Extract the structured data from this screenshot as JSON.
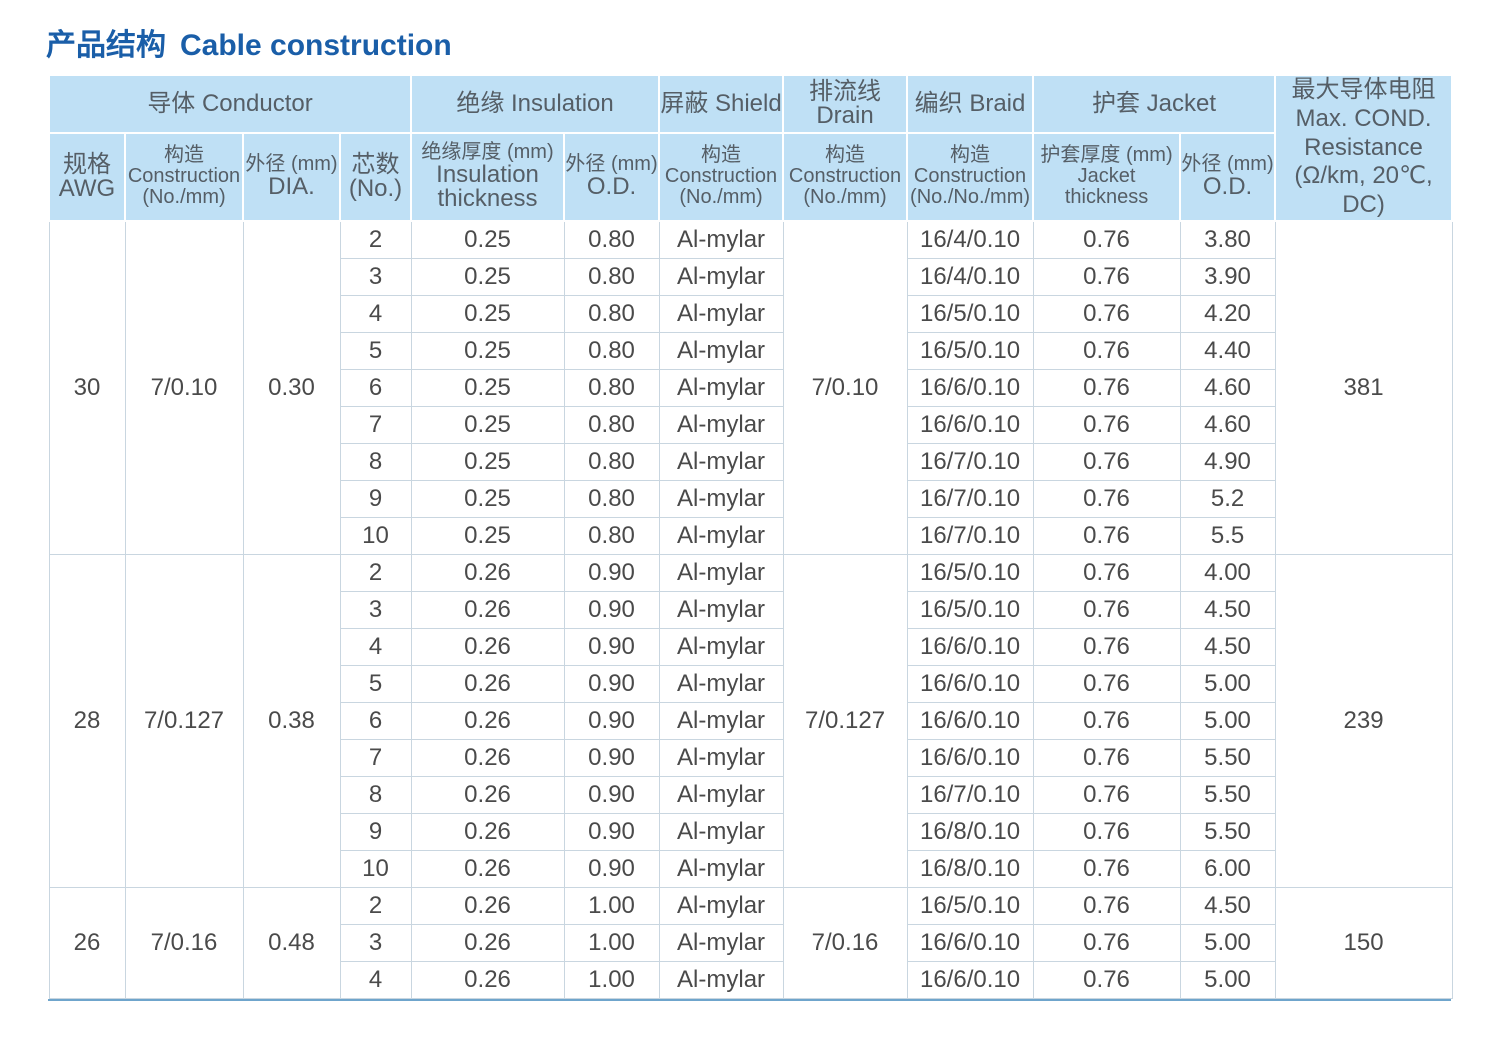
{
  "title": {
    "zh": "产品结构",
    "en": "Cable construction"
  },
  "header": {
    "groups": {
      "conductor": "导体 Conductor",
      "insulation": "绝缘 Insulation",
      "shield": "屏蔽 Shield",
      "drain": "排流线 Drain",
      "braid": "编织 Braid",
      "jacket": "护套 Jacket",
      "resistance_zh": "最大导体电阻",
      "resistance_en1": "Max. COND.",
      "resistance_en2": "Resistance",
      "resistance_unit": "(Ω/km, 20℃, DC)"
    },
    "cols": {
      "awg_zh": "规格",
      "awg_en": "AWG",
      "cond_construction_zh": "构造",
      "cond_construction_en1": "Construction",
      "cond_construction_en2": "(No./mm)",
      "dia_zh": "外径 (mm)",
      "dia_en": "DIA.",
      "cores_zh": "芯数",
      "cores_en": "(No.)",
      "ins_thick_zh": "绝缘厚度 (mm)",
      "ins_thick_en1": "Insulation",
      "ins_thick_en2": "thickness",
      "ins_od_zh": "外径 (mm)",
      "ins_od_en": "O.D.",
      "shield_zh": "构造",
      "shield_en1": "Construction",
      "shield_en2": "(No./mm)",
      "drain_zh": "构造",
      "drain_en1": "Construction",
      "drain_en2": "(No./mm)",
      "braid_zh": "构造",
      "braid_en1": "Construction",
      "braid_en2": "(No./No./mm)",
      "jacket_thick_zh": "护套厚度 (mm)",
      "jacket_thick_en1": "Jacket",
      "jacket_thick_en2": "thickness",
      "jacket_od_zh": "外径 (mm)",
      "jacket_od_en": "O.D."
    }
  },
  "groups": [
    {
      "awg": "30",
      "construction": "7/0.10",
      "dia": "0.30",
      "drain": "7/0.10",
      "resistance": "381",
      "rows": [
        {
          "cores": "2",
          "ins_thick": "0.25",
          "ins_od": "0.80",
          "shield": "Al-mylar",
          "braid": "16/4/0.10",
          "jacket_thick": "0.76",
          "jacket_od": "3.80"
        },
        {
          "cores": "3",
          "ins_thick": "0.25",
          "ins_od": "0.80",
          "shield": "Al-mylar",
          "braid": "16/4/0.10",
          "jacket_thick": "0.76",
          "jacket_od": "3.90"
        },
        {
          "cores": "4",
          "ins_thick": "0.25",
          "ins_od": "0.80",
          "shield": "Al-mylar",
          "braid": "16/5/0.10",
          "jacket_thick": "0.76",
          "jacket_od": "4.20"
        },
        {
          "cores": "5",
          "ins_thick": "0.25",
          "ins_od": "0.80",
          "shield": "Al-mylar",
          "braid": "16/5/0.10",
          "jacket_thick": "0.76",
          "jacket_od": "4.40"
        },
        {
          "cores": "6",
          "ins_thick": "0.25",
          "ins_od": "0.80",
          "shield": "Al-mylar",
          "braid": "16/6/0.10",
          "jacket_thick": "0.76",
          "jacket_od": "4.60"
        },
        {
          "cores": "7",
          "ins_thick": "0.25",
          "ins_od": "0.80",
          "shield": "Al-mylar",
          "braid": "16/6/0.10",
          "jacket_thick": "0.76",
          "jacket_od": "4.60"
        },
        {
          "cores": "8",
          "ins_thick": "0.25",
          "ins_od": "0.80",
          "shield": "Al-mylar",
          "braid": "16/7/0.10",
          "jacket_thick": "0.76",
          "jacket_od": "4.90"
        },
        {
          "cores": "9",
          "ins_thick": "0.25",
          "ins_od": "0.80",
          "shield": "Al-mylar",
          "braid": "16/7/0.10",
          "jacket_thick": "0.76",
          "jacket_od": "5.2"
        },
        {
          "cores": "10",
          "ins_thick": "0.25",
          "ins_od": "0.80",
          "shield": "Al-mylar",
          "braid": "16/7/0.10",
          "jacket_thick": "0.76",
          "jacket_od": "5.5"
        }
      ]
    },
    {
      "awg": "28",
      "construction": "7/0.127",
      "dia": "0.38",
      "drain": "7/0.127",
      "resistance": "239",
      "rows": [
        {
          "cores": "2",
          "ins_thick": "0.26",
          "ins_od": "0.90",
          "shield": "Al-mylar",
          "braid": "16/5/0.10",
          "jacket_thick": "0.76",
          "jacket_od": "4.00"
        },
        {
          "cores": "3",
          "ins_thick": "0.26",
          "ins_od": "0.90",
          "shield": "Al-mylar",
          "braid": "16/5/0.10",
          "jacket_thick": "0.76",
          "jacket_od": "4.50"
        },
        {
          "cores": "4",
          "ins_thick": "0.26",
          "ins_od": "0.90",
          "shield": "Al-mylar",
          "braid": "16/6/0.10",
          "jacket_thick": "0.76",
          "jacket_od": "4.50"
        },
        {
          "cores": "5",
          "ins_thick": "0.26",
          "ins_od": "0.90",
          "shield": "Al-mylar",
          "braid": "16/6/0.10",
          "jacket_thick": "0.76",
          "jacket_od": "5.00"
        },
        {
          "cores": "6",
          "ins_thick": "0.26",
          "ins_od": "0.90",
          "shield": "Al-mylar",
          "braid": "16/6/0.10",
          "jacket_thick": "0.76",
          "jacket_od": "5.00"
        },
        {
          "cores": "7",
          "ins_thick": "0.26",
          "ins_od": "0.90",
          "shield": "Al-mylar",
          "braid": "16/6/0.10",
          "jacket_thick": "0.76",
          "jacket_od": "5.50"
        },
        {
          "cores": "8",
          "ins_thick": "0.26",
          "ins_od": "0.90",
          "shield": "Al-mylar",
          "braid": "16/7/0.10",
          "jacket_thick": "0.76",
          "jacket_od": "5.50"
        },
        {
          "cores": "9",
          "ins_thick": "0.26",
          "ins_od": "0.90",
          "shield": "Al-mylar",
          "braid": "16/8/0.10",
          "jacket_thick": "0.76",
          "jacket_od": "5.50"
        },
        {
          "cores": "10",
          "ins_thick": "0.26",
          "ins_od": "0.90",
          "shield": "Al-mylar",
          "braid": "16/8/0.10",
          "jacket_thick": "0.76",
          "jacket_od": "6.00"
        }
      ]
    },
    {
      "awg": "26",
      "construction": "7/0.16",
      "dia": "0.48",
      "drain": "7/0.16",
      "resistance": "150",
      "rows": [
        {
          "cores": "2",
          "ins_thick": "0.26",
          "ins_od": "1.00",
          "shield": "Al-mylar",
          "braid": "16/5/0.10",
          "jacket_thick": "0.76",
          "jacket_od": "4.50"
        },
        {
          "cores": "3",
          "ins_thick": "0.26",
          "ins_od": "1.00",
          "shield": "Al-mylar",
          "braid": "16/6/0.10",
          "jacket_thick": "0.76",
          "jacket_od": "5.00"
        },
        {
          "cores": "4",
          "ins_thick": "0.26",
          "ins_od": "1.00",
          "shield": "Al-mylar",
          "braid": "16/6/0.10",
          "jacket_thick": "0.76",
          "jacket_od": "5.00"
        }
      ]
    }
  ]
}
